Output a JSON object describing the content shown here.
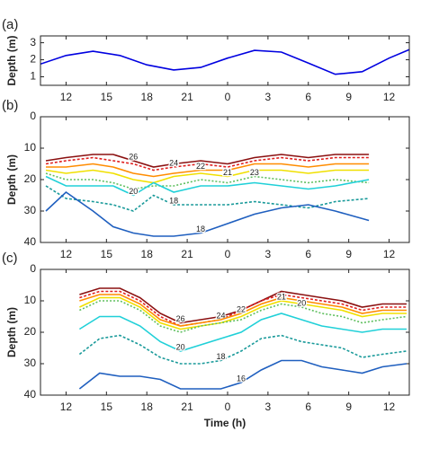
{
  "chart_data": [
    {
      "type": "line",
      "label": "(a)",
      "ylabel": "Depth (m)",
      "xlim": [
        10.1,
        37.5
      ],
      "xticks": [
        12,
        15,
        18,
        21,
        {
          "value": 24,
          "label": "0"
        },
        {
          "value": 27,
          "label": "3"
        },
        {
          "value": 30,
          "label": "6"
        },
        {
          "value": 33,
          "label": "9"
        },
        {
          "value": 36,
          "label": "12"
        }
      ],
      "ylim": [
        0.5,
        3.4
      ],
      "yticks": [
        1,
        2,
        3
      ],
      "x": [
        10.1,
        12,
        14,
        16,
        18,
        20,
        22,
        24,
        26,
        28,
        30,
        32,
        34,
        36,
        37.5
      ],
      "series": [
        {
          "color": "#0000e0",
          "dash": "none",
          "values": [
            1.75,
            2.25,
            2.5,
            2.25,
            1.7,
            1.4,
            1.55,
            2.1,
            2.55,
            2.45,
            1.8,
            1.15,
            1.3,
            2.1,
            2.6
          ]
        }
      ]
    },
    {
      "type": "line",
      "label": "(b)",
      "ylabel": "Depth (m)",
      "xlim": [
        10.1,
        37.5
      ],
      "xticks": [
        12,
        15,
        18,
        21,
        {
          "value": 24,
          "label": "0"
        },
        {
          "value": 27,
          "label": "3"
        },
        {
          "value": 30,
          "label": "6"
        },
        {
          "value": 33,
          "label": "9"
        },
        {
          "value": 36,
          "label": "12"
        }
      ],
      "ylim": [
        40,
        0
      ],
      "yticks": [
        0,
        10,
        20,
        30,
        40
      ],
      "x": [
        10.5,
        12,
        14,
        15.5,
        17,
        18.5,
        20,
        22,
        24,
        26,
        28,
        30,
        32,
        34.5
      ],
      "series": [
        {
          "name": "26",
          "color": "#8b1010",
          "dash": "none",
          "values": [
            14,
            13,
            12,
            12,
            14,
            16,
            15,
            14,
            15,
            13,
            12,
            13,
            12,
            12
          ]
        },
        {
          "name": "24",
          "color": "#e02020",
          "dash": "3 2",
          "values": [
            15,
            14,
            13,
            14,
            15,
            17,
            16,
            15,
            16,
            14,
            13,
            14,
            13,
            13
          ]
        },
        {
          "name": "22",
          "color": "#ff8c00",
          "dash": "none",
          "values": [
            16,
            16,
            15,
            16,
            18,
            19,
            18,
            17,
            17,
            15,
            15,
            16,
            15,
            15
          ]
        },
        {
          "name": "21",
          "color": "#f0e000",
          "dash": "none",
          "values": [
            17,
            18,
            17,
            18,
            20,
            21,
            19,
            18,
            19,
            17,
            17,
            18,
            17,
            17
          ]
        },
        {
          "name": "23",
          "color": "#5fbf5f",
          "dash": "2 2",
          "values": [
            18,
            20,
            20,
            21,
            23,
            22,
            22,
            20,
            21,
            19,
            20,
            21,
            20,
            21
          ]
        },
        {
          "name": "20",
          "color": "#20d0d8",
          "dash": "none",
          "values": [
            19,
            22,
            22,
            22,
            25,
            21,
            24,
            22,
            22,
            21,
            22,
            23,
            22,
            20
          ]
        },
        {
          "name": "18",
          "color": "#1a9a9a",
          "dash": "3 2",
          "values": [
            22,
            26,
            27,
            28,
            30,
            25,
            28,
            28,
            28,
            27,
            28,
            29,
            27,
            26
          ]
        },
        {
          "name": "18",
          "color": "#1f5fbf",
          "dash": "none",
          "values": [
            30,
            24,
            30,
            35,
            37,
            38,
            38,
            37,
            34,
            31,
            29,
            28,
            30,
            33
          ]
        }
      ]
    },
    {
      "type": "line",
      "label": "(c)",
      "ylabel": "Depth (m)",
      "xlabel": "Time (h)",
      "xlim": [
        10.1,
        37.5
      ],
      "xticks": [
        12,
        15,
        18,
        21,
        {
          "value": 24,
          "label": "0"
        },
        {
          "value": 27,
          "label": "3"
        },
        {
          "value": 30,
          "label": "6"
        },
        {
          "value": 33,
          "label": "9"
        },
        {
          "value": 36,
          "label": "12"
        }
      ],
      "ylim": [
        40,
        0
      ],
      "yticks": [
        0,
        10,
        20,
        30,
        40
      ],
      "x": [
        13,
        14.5,
        16,
        17.5,
        19,
        20.5,
        22,
        23.5,
        25,
        26.5,
        28,
        29.5,
        31,
        32.5,
        34,
        35.5,
        37.3
      ],
      "series": [
        {
          "name": "26",
          "color": "#8b1010",
          "dash": "none",
          "values": [
            8,
            6,
            6,
            9,
            14,
            17,
            16,
            15,
            13,
            10,
            7,
            8,
            9,
            10,
            12,
            11,
            11
          ]
        },
        {
          "name": "24",
          "color": "#e02020",
          "dash": "3 2",
          "values": [
            9,
            7,
            7,
            10,
            15,
            18,
            17,
            16,
            13,
            10,
            8,
            9,
            10,
            11,
            13,
            12,
            12
          ]
        },
        {
          "name": "22",
          "color": "#ff8c00",
          "dash": "none",
          "values": [
            10,
            8,
            8,
            11,
            16,
            18,
            17,
            16,
            14,
            11,
            9,
            10,
            11,
            12,
            14,
            13,
            13
          ]
        },
        {
          "name": "21",
          "color": "#f0e000",
          "dash": "none",
          "values": [
            12,
            9,
            9,
            12,
            17,
            19,
            18,
            17,
            15,
            12,
            10,
            11,
            12,
            13,
            15,
            14,
            14
          ]
        },
        {
          "name": "20",
          "color": "#5fbf5f",
          "dash": "2 2",
          "values": [
            13,
            10,
            10,
            13,
            18,
            20,
            18,
            17,
            16,
            13,
            11,
            12,
            14,
            15,
            17,
            16,
            15
          ]
        },
        {
          "name": "20",
          "color": "#20d0d8",
          "dash": "none",
          "values": [
            19,
            15,
            15,
            18,
            23,
            26,
            24,
            22,
            20,
            16,
            14,
            16,
            18,
            19,
            20,
            19,
            19
          ]
        },
        {
          "name": "18",
          "color": "#1a9a9a",
          "dash": "3 2",
          "values": [
            27,
            22,
            21,
            24,
            28,
            30,
            30,
            29,
            26,
            22,
            21,
            23,
            24,
            25,
            28,
            27,
            26
          ]
        },
        {
          "name": "16",
          "color": "#1f5fbf",
          "dash": "none",
          "values": [
            38,
            33,
            34,
            34,
            35,
            38,
            38,
            38,
            36,
            32,
            29,
            29,
            31,
            32,
            33,
            31,
            30
          ]
        }
      ]
    }
  ]
}
